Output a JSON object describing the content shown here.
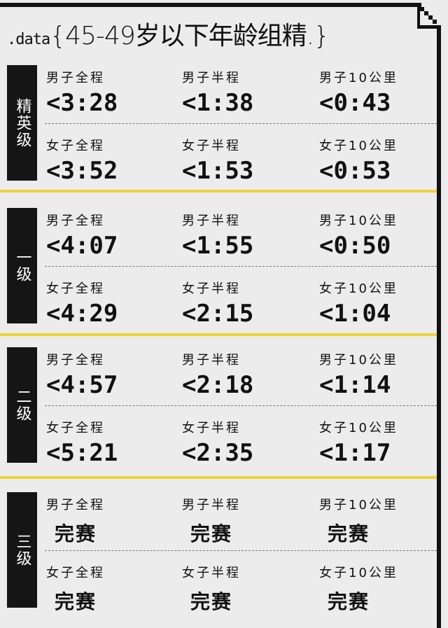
{
  "title": {
    "prefix": ".data",
    "text": "{45-49岁以下年龄组精.}"
  },
  "colors": {
    "accent": "#f0d23a",
    "badge": "#151515",
    "background": "#ececec"
  },
  "sections": [
    {
      "level": "精英级",
      "rows": [
        [
          {
            "label": "男子全程",
            "value": "<3:28"
          },
          {
            "label": "男子半程",
            "value": "<1:38"
          },
          {
            "label": "男子10公里",
            "value": "<0:43"
          }
        ],
        [
          {
            "label": "女子全程",
            "value": "<3:52"
          },
          {
            "label": "女子半程",
            "value": "<1:53"
          },
          {
            "label": "女子10公里",
            "value": "<0:53"
          }
        ]
      ]
    },
    {
      "level": "一级",
      "rows": [
        [
          {
            "label": "男子全程",
            "value": "<4:07"
          },
          {
            "label": "男子半程",
            "value": "<1:55"
          },
          {
            "label": "男子10公里",
            "value": "<0:50"
          }
        ],
        [
          {
            "label": "女子全程",
            "value": "<4:29"
          },
          {
            "label": "女子半程",
            "value": "<2:15"
          },
          {
            "label": "女子10公里",
            "value": "<1:04"
          }
        ]
      ]
    },
    {
      "level": "二级",
      "rows": [
        [
          {
            "label": "男子全程",
            "value": "<4:57"
          },
          {
            "label": "男子半程",
            "value": "<2:18"
          },
          {
            "label": "男子10公里",
            "value": "<1:14"
          }
        ],
        [
          {
            "label": "女子全程",
            "value": "<5:21"
          },
          {
            "label": "女子半程",
            "value": "<2:35"
          },
          {
            "label": "女子10公里",
            "value": "<1:17"
          }
        ]
      ]
    },
    {
      "level": "三级",
      "rows": [
        [
          {
            "label": "男子全程",
            "value": "完赛"
          },
          {
            "label": "男子半程",
            "value": "完赛"
          },
          {
            "label": "男子10公里",
            "value": "完赛"
          }
        ],
        [
          {
            "label": "女子全程",
            "value": "完赛"
          },
          {
            "label": "女子半程",
            "value": "完赛"
          },
          {
            "label": "女子10公里",
            "value": "完赛"
          }
        ]
      ]
    }
  ]
}
